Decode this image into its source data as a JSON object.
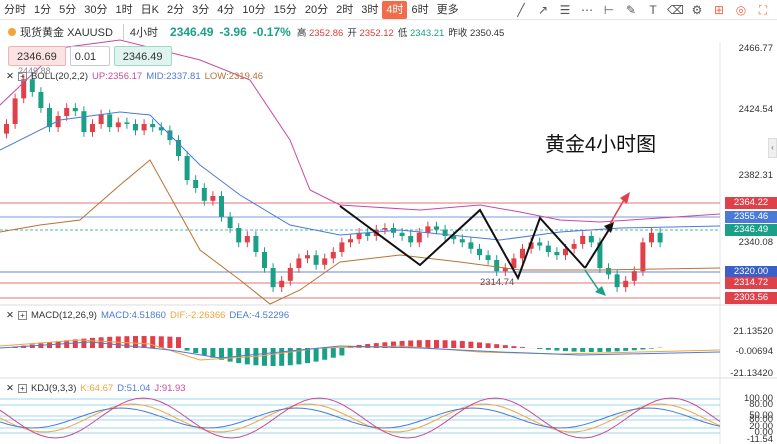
{
  "toolbar": {
    "timeframes": [
      "分时",
      "1分",
      "5分",
      "30分",
      "1时",
      "日K",
      "2分",
      "3分",
      "4分",
      "10分",
      "15分",
      "20分",
      "2时",
      "3时",
      "4时",
      "6时",
      "更多"
    ],
    "active_timeframe": "4时",
    "icons": [
      "trend-line-icon",
      "ray-icon",
      "fib-icon",
      "channel-icon",
      "measure-icon",
      "pen-icon",
      "text-icon",
      "eraser-icon",
      "settings-icon",
      "indicator-icon",
      "camera-icon",
      "fullscreen-icon"
    ]
  },
  "symbol": {
    "name_cn": "现货黄金",
    "code": "XAUUSD",
    "period": "4小时",
    "price": "2346.49",
    "change": "-3.96",
    "change_pct": "-0.17%",
    "high_label": "高",
    "high": "2352.86",
    "open_label": "开",
    "open": "2352.12",
    "low_label": "低",
    "low": "2343.21",
    "prev_label": "昨收",
    "prev": "2350.45"
  },
  "order": {
    "sell_price": "2346.69",
    "qty": "0.01",
    "buy_price": "2346.49"
  },
  "boll": {
    "label": "BOLL(20,2,2)",
    "up_label": "UP:",
    "up": "2356.17",
    "mid_label": "MID:",
    "mid": "2337.81",
    "low_label": "LOW:",
    "low": "2319.46"
  },
  "macd": {
    "label": "MACD(12,26,9)",
    "macd_label": "MACD:",
    "macd": "4.51860",
    "dif_label": "DIF:",
    "dif": "-2.26366",
    "dea_label": "DEA:",
    "dea": "-4.52296"
  },
  "kdj": {
    "label": "KDJ(9,3,3)",
    "k_label": "K:",
    "k": "64.67",
    "d_label": "D:",
    "d": "51.04",
    "j_label": "J:",
    "j": "91.93"
  },
  "price_axis": [
    "2466.77",
    "2424.54",
    "2382.31",
    "2340.08"
  ],
  "macd_axis": [
    "21.13520",
    "-0.00694",
    "-21.13420"
  ],
  "kdj_axis": [
    "100.00",
    "80.00",
    "20.00",
    "0.00",
    "-11.54"
  ],
  "kdj_overlap_labels": [
    "50.00",
    "80.00"
  ],
  "level_tags": [
    {
      "value": "2364.22",
      "color": "#e0404a"
    },
    {
      "value": "2355.46",
      "color": "#4a7ad9"
    },
    {
      "value": "2346.49",
      "color": "#1aa087"
    },
    {
      "value": "2320.00",
      "color": "#3a5fc8"
    },
    {
      "value": "2314.72",
      "color": "#e0404a"
    },
    {
      "value": "2303.56",
      "color": "#e0404a"
    }
  ],
  "annotation": {
    "title": "黄金4小时图",
    "low_value": "2314.74",
    "peak_value": "2449.88"
  }
}
